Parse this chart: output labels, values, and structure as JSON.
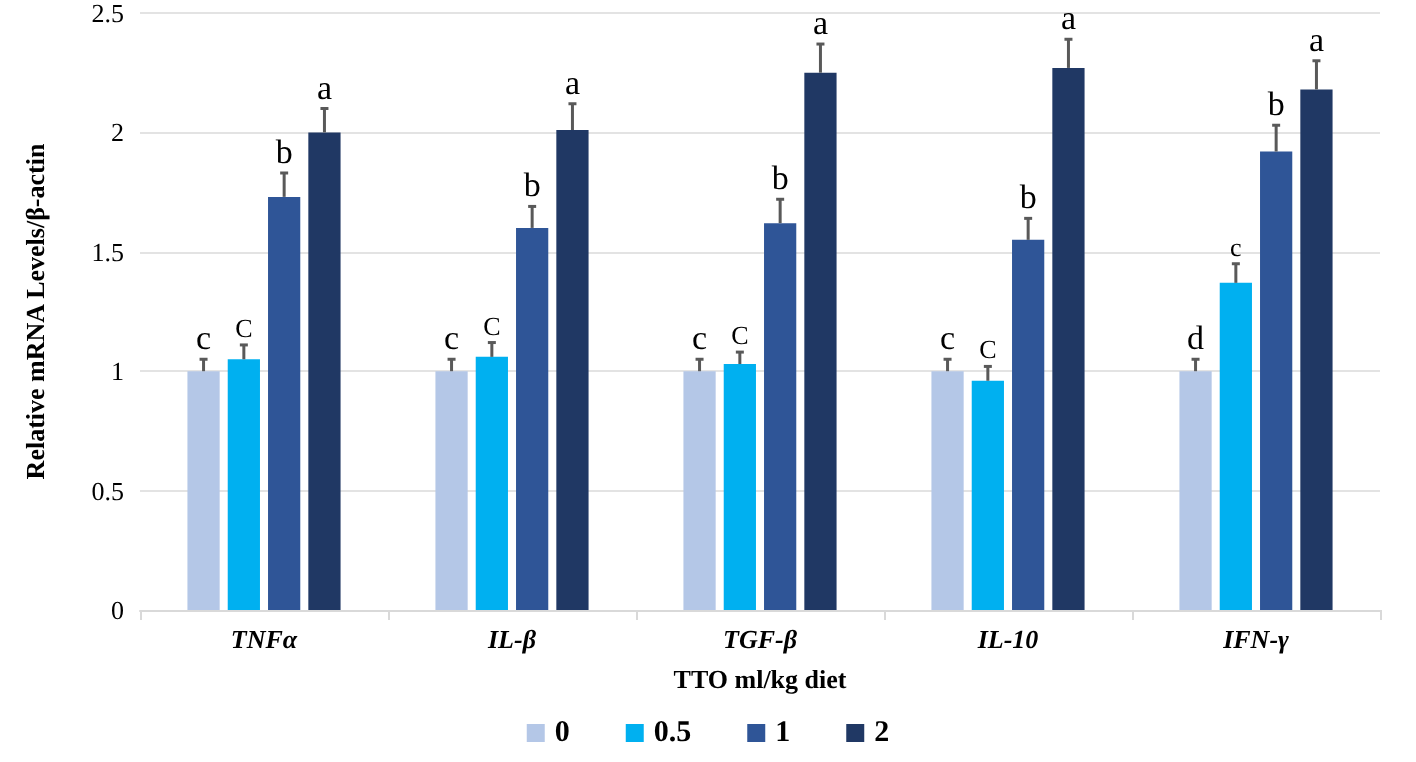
{
  "chart_data": {
    "type": "bar",
    "xlabel": "TTO ml/kg diet",
    "ylabel": "Relative mRNA Levels/β-actin",
    "categories": [
      "TNFα",
      "IL-β",
      "TGF-β",
      "IL-10",
      "IFN-γ"
    ],
    "series": [
      {
        "name": "0",
        "color": "#b4c7e7",
        "values": [
          1.0,
          1.0,
          1.0,
          1.0,
          1.0
        ],
        "errors": [
          [
            1.0,
            1.05
          ],
          [
            1.0,
            1.05
          ],
          [
            1.0,
            1.05
          ],
          [
            1.0,
            1.05
          ],
          [
            1.0,
            1.05
          ]
        ],
        "value_labels": [
          "c",
          "c",
          "c",
          "c",
          "d"
        ]
      },
      {
        "name": "0.5",
        "color": "#00b0f0",
        "values": [
          1.05,
          1.06,
          1.03,
          0.96,
          1.37
        ],
        "errors": [
          [
            1.05,
            1.11
          ],
          [
            1.06,
            1.12
          ],
          [
            1.03,
            1.08
          ],
          [
            0.96,
            1.02
          ],
          [
            1.37,
            1.45
          ]
        ],
        "value_labels": [
          "C",
          "C",
          "C",
          "C",
          "c"
        ]
      },
      {
        "name": "1",
        "color": "#2f5597",
        "values": [
          1.73,
          1.6,
          1.62,
          1.55,
          1.92
        ],
        "errors": [
          [
            1.73,
            1.83
          ],
          [
            1.6,
            1.69
          ],
          [
            1.62,
            1.72
          ],
          [
            1.55,
            1.64
          ],
          [
            1.92,
            2.03
          ]
        ],
        "value_labels": [
          "b",
          "b",
          "b",
          "b",
          "b"
        ]
      },
      {
        "name": "2",
        "color": "#203864",
        "values": [
          2.0,
          2.01,
          2.25,
          2.27,
          2.18
        ],
        "errors": [
          [
            2.0,
            2.1
          ],
          [
            2.01,
            2.12
          ],
          [
            2.25,
            2.37
          ],
          [
            2.27,
            2.39
          ],
          [
            2.18,
            2.3
          ]
        ],
        "value_labels": [
          "a",
          "a",
          "a",
          "a",
          "a"
        ]
      }
    ],
    "ylim": [
      0,
      2.5
    ],
    "yticks": [
      0,
      0.5,
      1,
      1.5,
      2,
      2.5
    ],
    "grid": "y",
    "legend": "bottom"
  }
}
